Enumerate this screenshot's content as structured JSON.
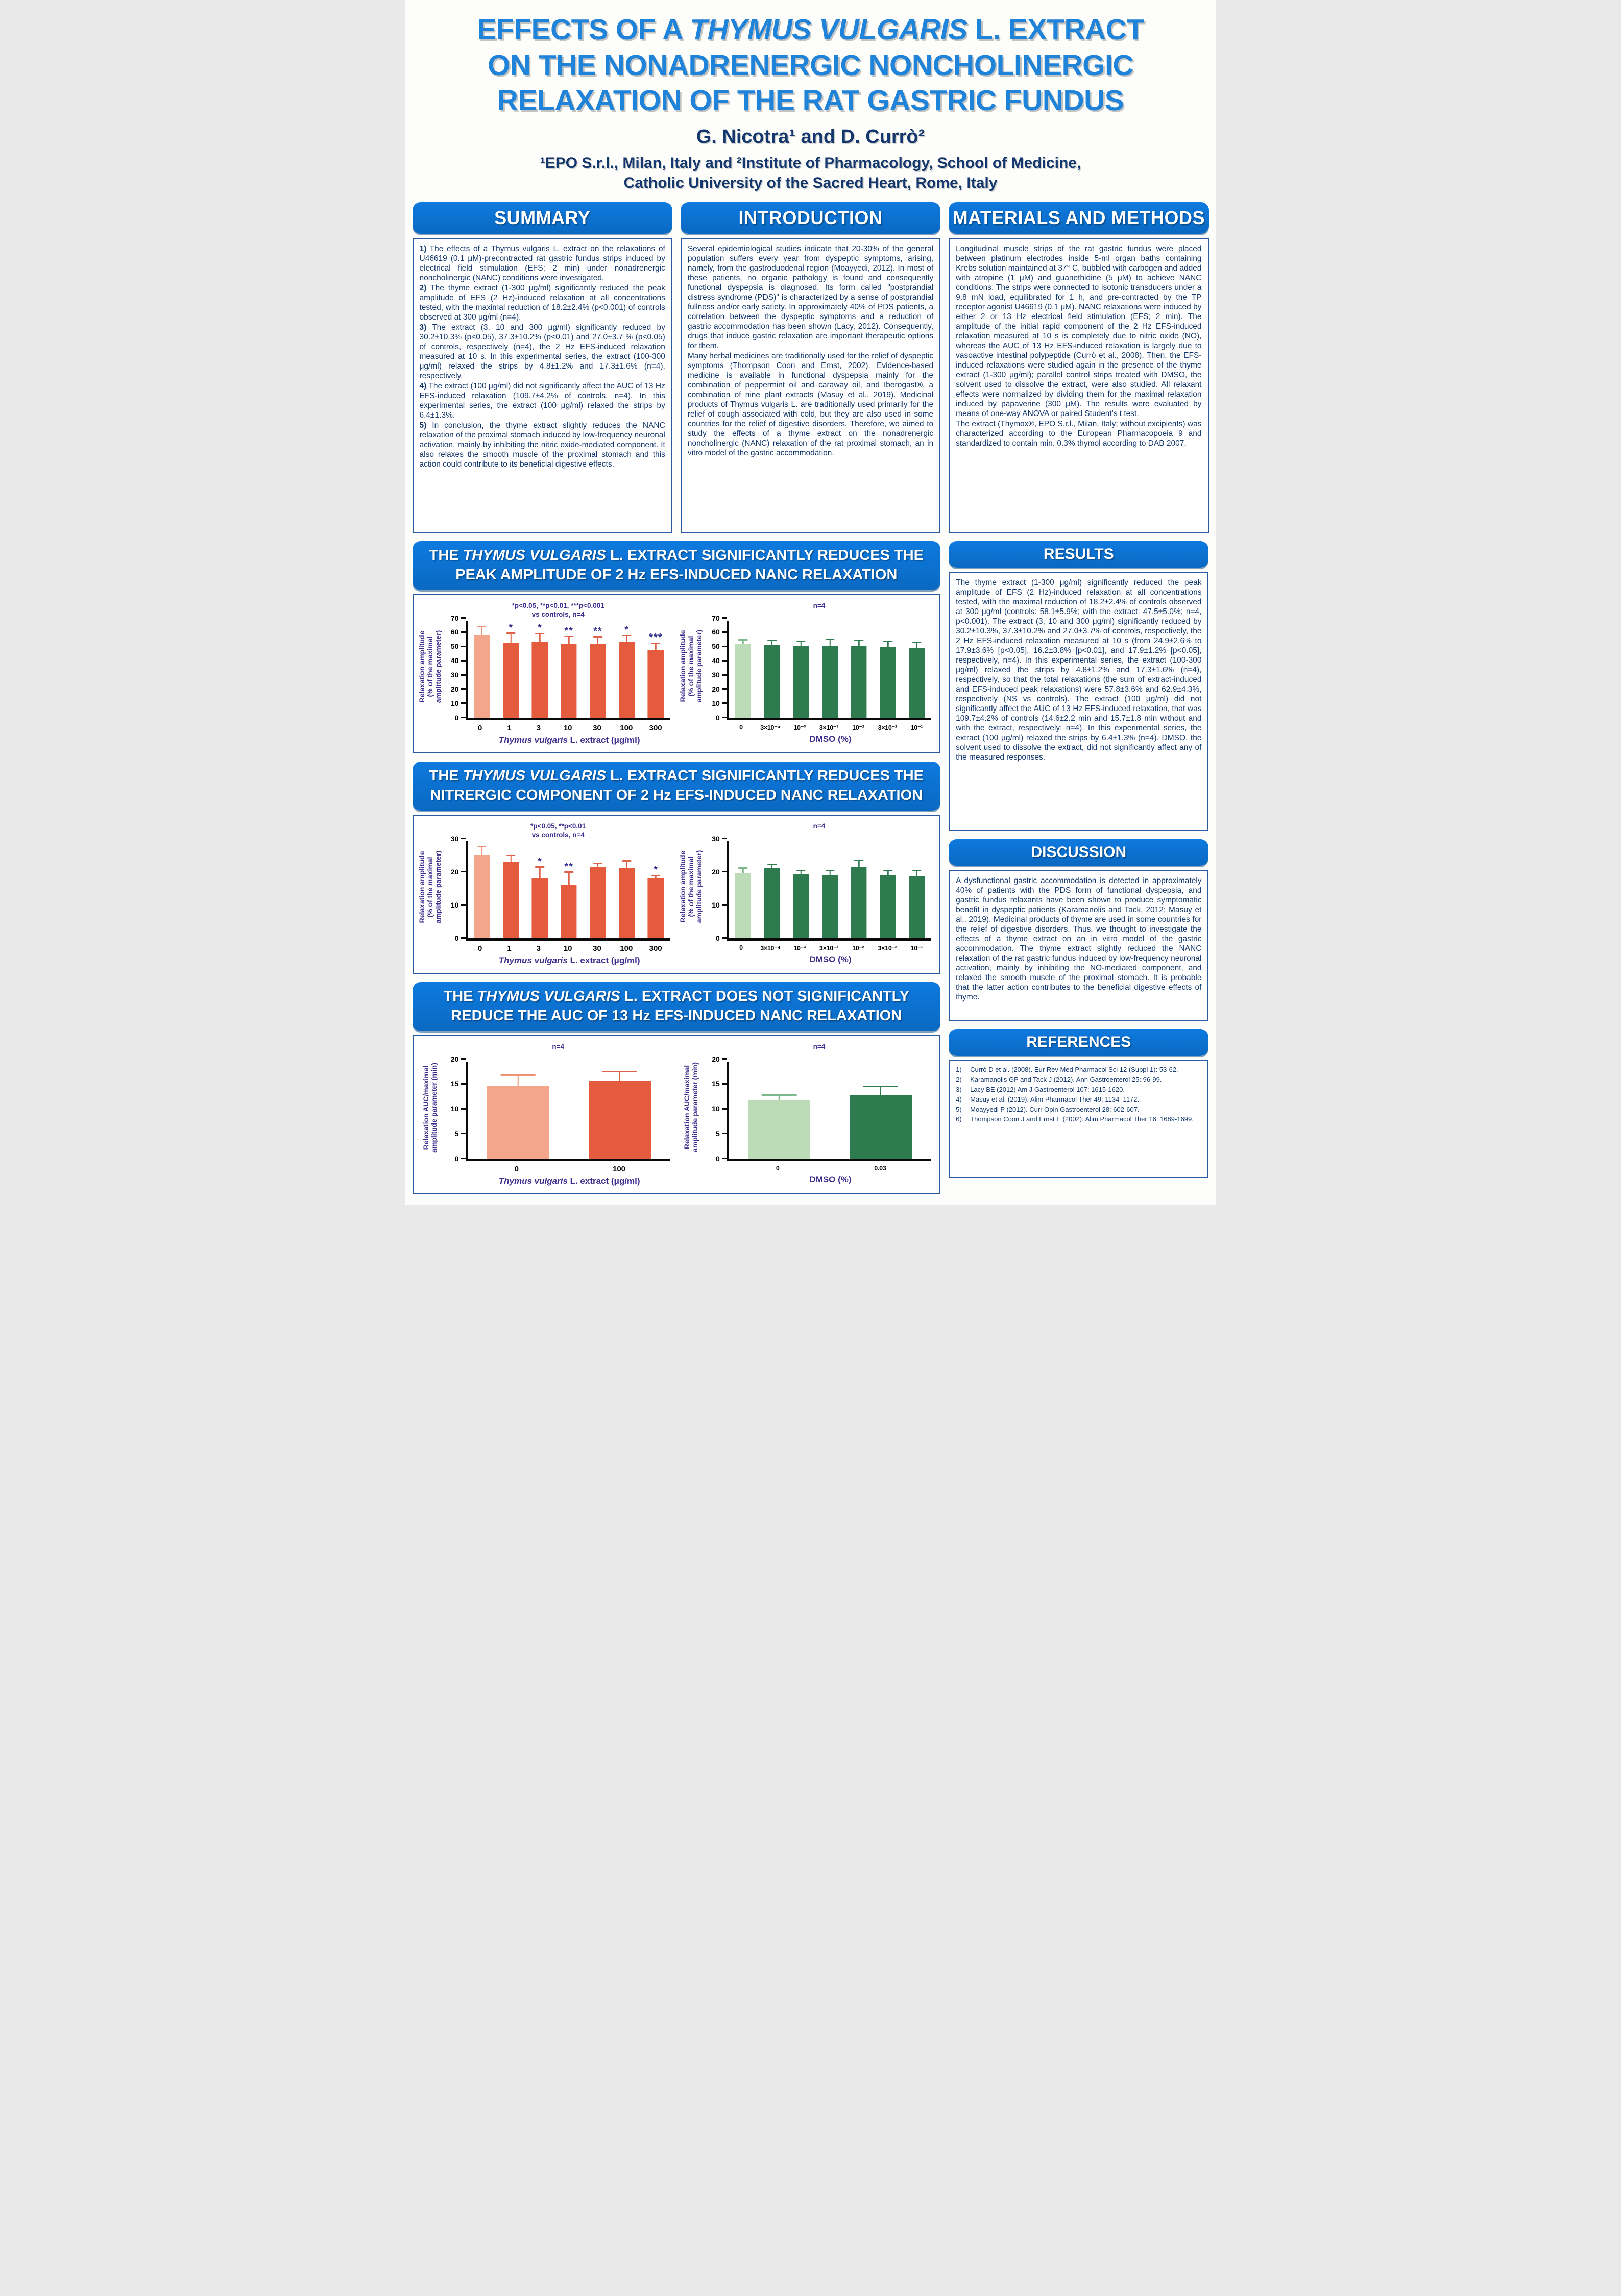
{
  "poster": {
    "title_lines": [
      [
        {
          "t": "EFFECTS OF A ",
          "i": false
        },
        {
          "t": "THYMUS VULGARIS",
          "i": true
        },
        {
          "t": " L. EXTRACT",
          "i": false
        }
      ],
      [
        {
          "t": "ON THE NONADRENERGIC NONCHOLINERGIC",
          "i": false
        }
      ],
      [
        {
          "t": "RELAXATION OF THE RAT GASTRIC FUNDUS",
          "i": false
        }
      ]
    ],
    "authors": "G. Nicotra¹ and D. Currò²",
    "affiliation_lines": [
      "¹EPO S.r.l., Milan, Italy and ²Institute of Pharmacology, School of Medicine,",
      "Catholic University of the Sacred Heart, Rome, Italy"
    ]
  },
  "sections": {
    "summary": {
      "title": "SUMMARY",
      "paragraphs": [
        {
          "num": "1)",
          "text": "The effects of a Thymus vulgaris L. extract on the relaxations of U46619 (0.1 μM)-precontracted rat gastric fundus strips induced by electrical field stimulation (EFS; 2 min) under nonadrenergic noncholinergic (NANC) conditions were investigated."
        },
        {
          "num": "2)",
          "text": "The thyme extract (1-300 μg/ml) significantly reduced the peak amplitude of EFS (2 Hz)-induced relaxation at all concentrations tested, with the maximal reduction of 18.2±2.4% (p<0.001) of controls observed at 300 μg/ml (n=4)."
        },
        {
          "num": "3)",
          "text": "The extract (3, 10 and 300 μg/ml) significantly reduced by 30.2±10.3% (p<0.05), 37.3±10.2% (p<0.01) and 27.0±3.7 % (p<0.05) of controls, respectively (n=4), the 2 Hz EFS-induced relaxation measured at 10 s. In this experimental series, the extract (100-300 μg/ml) relaxed the strips by 4.8±1.2% and 17.3±1.6% (n=4), respectively."
        },
        {
          "num": "4)",
          "text": "The extract (100 μg/ml) did not significantly affect the AUC of 13 Hz EFS-induced relaxation (109.7±4.2% of controls, n=4). In this experimental series, the extract (100 μg/ml) relaxed the strips by 6.4±1.3%."
        },
        {
          "num": "5)",
          "text": "In conclusion, the thyme extract slightly reduces the NANC relaxation of the proximal stomach induced by low-frequency neuronal activation, mainly by inhibiting the nitric oxide-mediated component. It also relaxes the smooth muscle of the proximal stomach and this action could contribute to its beneficial digestive effects."
        }
      ]
    },
    "introduction": {
      "title": "INTRODUCTION",
      "paragraphs": [
        "Several epidemiological studies indicate that 20-30% of the general population suffers every year from dyspeptic symptoms, arising, namely, from the gastroduodenal region (Moayyedi, 2012). In most of these patients, no organic pathology is found and consequently functional dyspepsia is diagnosed. Its form called \"postprandial distress syndrome (PDS)\" is characterized by a sense of postprandial fullness and/or early satiety. In approximately 40% of PDS patients, a correlation between the dyspeptic symptoms and a reduction of gastric accommodation has been shown (Lacy, 2012). Consequently, drugs that induce gastric relaxation are important therapeutic options for them.",
        "Many herbal medicines are traditionally used for the relief of dyspeptic symptoms (Thompson Coon and Ernst, 2002). Evidence-based medicine is available in functional dyspepsia mainly for the combination of peppermint oil and caraway oil, and Iberogast®, a combination of nine plant extracts (Masuy et al., 2019). Medicinal products of Thymus vulgaris L. are traditionally used primarily for the relief of cough associated with cold, but they are also used in some countries for the relief of digestive disorders. Therefore, we aimed to study the effects of a thyme extract on the nonadrenergic noncholinergic (NANC) relaxation of the rat proximal stomach, an in vitro model of the gastric accommodation."
      ]
    },
    "methods": {
      "title": "MATERIALS AND METHODS",
      "paragraphs": [
        "Longitudinal muscle strips of the rat gastric fundus were placed between platinum electrodes inside 5-ml organ baths containing Krebs solution maintained at 37° C, bubbled with carbogen and added with atropine (1 μM) and guanethidine (5 μM) to achieve NANC conditions. The strips were connected to isotonic transducers under a 9.8 mN load, equilibrated for 1 h, and pre-contracted by the TP receptor agonist U46619 (0.1 μM). NANC relaxations were induced by either 2 or 13 Hz electrical field stimulation (EFS; 2 min). The amplitude of the initial rapid component of the 2 Hz EFS-induced relaxation measured at 10 s is completely due to nitric oxide (NO), whereas the AUC of 13 Hz EFS-induced relaxation is largely due to vasoactive intestinal polypeptide (Currò et al., 2008). Then, the EFS-induced relaxations were studied again in the presence of the thyme extract (1-300 μg/ml); parallel control strips treated with DMSO, the solvent used to dissolve the extract, were also studied. All relaxant effects were normalized by dividing them for the maximal relaxation induced by papaverine (300 μM). The results were evaluated by means of one-way ANOVA or paired Student's t test.",
        "The extract (Thymox®, EPO S.r.l., Milan, Italy; without excipients) was characterized according to the European Pharmacopoeia 9 and standardized to contain min. 0.3% thymol according to DAB 2007."
      ]
    },
    "results": {
      "title": "RESULTS",
      "paragraphs": [
        "The thyme extract (1-300 μg/ml) significantly reduced the peak amplitude of EFS (2 Hz)-induced relaxation at all concentrations tested, with the maximal reduction of 18.2±2.4% of controls observed at 300 μg/ml (controls: 58.1±5.9%; with the extract: 47.5±5.0%; n=4, p<0.001). The extract (3, 10 and 300 μg/ml) significantly reduced by 30.2±10.3%, 37.3±10.2% and 27.0±3.7% of controls, respectively, the 2 Hz EFS-induced relaxation measured at 10 s (from 24.9±2.6% to 17.9±3.6% [p<0.05], 16.2±3.8% [p<0.01], and 17.9±1.2% [p<0.05], respectively, n=4). In this experimental series, the extract (100-300 μg/ml) relaxed the strips by 4.8±1.2% and 17.3±1.6% (n=4), respectively, so that the total relaxations (the sum of extract-induced and EFS-induced peak relaxations) were 57.8±3.6% and 62.9±4.3%, respectively (NS vs controls). The extract (100 μg/ml) did not significantly affect the AUC of 13 Hz EFS-induced relaxation, that was 109.7±4.2% of controls (14.6±2.2 min and 15.7±1.8 min without and with the extract, respectively; n=4). In this experimental series, the extract (100 μg/ml) relaxed the strips by 6.4±1.3% (n=4). DMSO, the solvent used to dissolve the extract, did not significantly affect any of the measured responses."
      ]
    },
    "discussion": {
      "title": "DISCUSSION",
      "paragraphs": [
        "A dysfunctional gastric accommodation is detected in approximately 40% of patients with the PDS form of functional dyspepsia, and gastric fundus relaxants have been shown to produce symptomatic benefit in dyspeptic patients (Karamanolis and Tack, 2012; Masuy et al., 2019). Medicinal products of thyme are used in some countries for the relief of digestive disorders. Thus, we thought to investigate the effects of a thyme extract on an in vitro model of the gastric accommodation. The thyme extract slightly reduced the NANC relaxation of the rat gastric fundus induced by low-frequency neuronal activation, mainly by inhibiting the NO-mediated component, and relaxed the smooth muscle of the proximal stomach. It is probable that the latter action contributes to the beneficial digestive effects of thyme."
      ]
    },
    "references": {
      "title": "REFERENCES",
      "items": [
        {
          "n": "1)",
          "text": "Currò D et al. (2008). Eur Rev Med Pharmacol Sci 12 (Suppl 1): 53-62."
        },
        {
          "n": "2)",
          "text": "Karamanolis GP and Tack J (2012). Ann Gastroenterol 25: 96-99."
        },
        {
          "n": "3)",
          "text": "Lacy BE (2012) Am J Gastroenterol 107: 1615-1620."
        },
        {
          "n": "4)",
          "text": "Masuy et al. (2019). Alim Pharmacol Ther 49: 1134–1172."
        },
        {
          "n": "5)",
          "text": "Moayyedi P (2012). Curr Opin Gastroenterol 28: 602-607."
        },
        {
          "n": "6)",
          "text": "Thompson Coon J and Ernst E (2002). Alim Pharmacol Ther 16: 1689-1699."
        }
      ]
    }
  },
  "panels": [
    {
      "title_parts": [
        {
          "t": "THE ",
          "i": false
        },
        {
          "t": "THYMUS VULGARIS",
          "i": true
        },
        {
          "t": " L. EXTRACT SIGNIFICANTLY REDUCES THE PEAK AMPLITUDE OF 2 Hz EFS-INDUCED NANC RELAXATION",
          "i": false
        }
      ]
    },
    {
      "title_parts": [
        {
          "t": "THE ",
          "i": false
        },
        {
          "t": "THYMUS VULGARIS",
          "i": true
        },
        {
          "t": " L. EXTRACT SIGNIFICANTLY REDUCES THE NITRERGIC COMPONENT OF 2 Hz EFS-INDUCED NANC RELAXATION",
          "i": false
        }
      ]
    },
    {
      "title_parts": [
        {
          "t": "THE ",
          "i": false
        },
        {
          "t": "THYMUS VULGARIS",
          "i": true
        },
        {
          "t": " L. EXTRACT DOES NOT SIGNIFICANTLY REDUCE THE AUC OF 13 Hz EFS-INDUCED NANC RELAXATION",
          "i": false
        }
      ]
    }
  ],
  "chart_data": [
    {
      "type": "bar",
      "categories": [
        "0",
        "1",
        "3",
        "10",
        "30",
        "100",
        "300"
      ],
      "values": [
        58,
        52.5,
        53,
        51.5,
        52,
        53.5,
        47.5
      ],
      "errors": [
        6,
        7,
        6.3,
        5.8,
        5,
        4.5,
        5
      ],
      "significance": [
        "",
        "*",
        "*",
        "**",
        "**",
        "*",
        "***"
      ],
      "annotation": [
        "*p<0.05, **p<0.01, ***p<0.001",
        "vs controls, n=4"
      ],
      "ylabel_lines": [
        "Relaxation amplitude",
        "(% of the maximal",
        "amplitude parameter)"
      ],
      "xlabel_parts": [
        {
          "t": "Thymus vulgaris",
          "i": true
        },
        {
          "t": " L. extract (μg/ml)",
          "i": false
        }
      ],
      "ylim": [
        0,
        70
      ],
      "ystep": 10,
      "colors": {
        "control": "#F4A68C",
        "bar": "#E55B3E",
        "control_err": "#EF9377",
        "err": "#E0614A"
      }
    },
    {
      "type": "bar",
      "categories": [
        "0",
        "3×10⁻⁴",
        "10⁻³",
        "3×10⁻³",
        "10⁻²",
        "3×10⁻²",
        "10⁻¹"
      ],
      "values": [
        51.5,
        51,
        50.5,
        50.3,
        50.5,
        49.5,
        49
      ],
      "errors": [
        3.3,
        3.6,
        3.5,
        4.7,
        4,
        4.4,
        4
      ],
      "significance": [
        "",
        "",
        "",
        "",
        "",
        "",
        ""
      ],
      "annotation": [
        "n=4"
      ],
      "ylabel_lines": [
        "Relaxation amplitude",
        "(% of the maximal",
        "amplitude parameter)"
      ],
      "xlabel_parts": [
        {
          "t": "DMSO (%)",
          "i": false
        }
      ],
      "ylim": [
        0,
        70
      ],
      "ystep": 10,
      "colors": {
        "control": "#BCDCB8",
        "bar": "#2E7B4F",
        "control_err": "#7FB98B",
        "err": "#2E7B4F"
      }
    },
    {
      "type": "bar",
      "categories": [
        "0",
        "1",
        "3",
        "10",
        "30",
        "100",
        "300"
      ],
      "values": [
        25,
        23,
        18,
        16,
        21.5,
        21,
        18
      ],
      "errors": [
        2.6,
        2,
        3.5,
        4,
        1,
        2.4,
        1
      ],
      "significance": [
        "",
        "",
        "*",
        "**",
        "",
        "",
        "*"
      ],
      "annotation": [
        "*p<0.05, **p<0.01",
        "vs controls, n=4"
      ],
      "ylabel_lines": [
        "Relaxation amplitude",
        "(% of the maximal",
        "amplitude parameter)"
      ],
      "xlabel_parts": [
        {
          "t": "Thymus vulgaris",
          "i": true
        },
        {
          "t": " L. extract (μg/ml)",
          "i": false
        }
      ],
      "ylim": [
        0,
        30
      ],
      "ystep": 10,
      "colors": {
        "control": "#F4A68C",
        "bar": "#E55B3E",
        "control_err": "#EF9377",
        "err": "#E0614A"
      }
    },
    {
      "type": "bar",
      "categories": [
        "0",
        "3×10⁻⁴",
        "10⁻³",
        "3×10⁻³",
        "10⁻²",
        "3×10⁻²",
        "10⁻¹"
      ],
      "values": [
        19.5,
        21,
        19.2,
        18.8,
        21.5,
        18.9,
        18.7
      ],
      "errors": [
        1.7,
        1.3,
        1.2,
        1.6,
        2,
        1.5,
        1.8
      ],
      "significance": [
        "",
        "",
        "",
        "",
        "",
        "",
        ""
      ],
      "annotation": [
        "n=4"
      ],
      "ylabel_lines": [
        "Relaxation amplitude",
        "(% of the maximal",
        "amplitude parameter)"
      ],
      "xlabel_parts": [
        {
          "t": "DMSO (%)",
          "i": false
        }
      ],
      "ylim": [
        0,
        30
      ],
      "ystep": 10,
      "colors": {
        "control": "#BCDCB8",
        "bar": "#2E7B4F",
        "control_err": "#7FB98B",
        "err": "#2E7B4F"
      }
    },
    {
      "type": "bar",
      "categories": [
        "0",
        "100"
      ],
      "values": [
        14.6,
        15.7
      ],
      "errors": [
        2.2,
        1.8
      ],
      "significance": [
        "",
        ""
      ],
      "annotation": [
        "n=4"
      ],
      "ylabel_lines": [
        "Relaxation AUC/maximal",
        "amplitude parameter (min)"
      ],
      "xlabel_parts": [
        {
          "t": "Thymus vulgaris",
          "i": true
        },
        {
          "t": " L. extract (μg/ml)",
          "i": false
        }
      ],
      "ylim": [
        0,
        20
      ],
      "ystep": 5,
      "colors": {
        "control": "#F4A68C",
        "bar": "#E55B3E",
        "control_err": "#EF9377",
        "err": "#E0614A"
      }
    },
    {
      "type": "bar",
      "categories": [
        "0",
        "0.03"
      ],
      "values": [
        11.8,
        12.7
      ],
      "errors": [
        1.0,
        1.8
      ],
      "significance": [
        "",
        ""
      ],
      "annotation": [
        "n=4"
      ],
      "ylabel_lines": [
        "Relaxation AUC/maximal",
        "amplitude parameter (min)"
      ],
      "xlabel_parts": [
        {
          "t": "DMSO (%)",
          "i": false
        }
      ],
      "ylim": [
        0,
        20
      ],
      "ystep": 5,
      "colors": {
        "control": "#BCDCB8",
        "bar": "#2E7B4F",
        "control_err": "#7FB98B",
        "err": "#2E7B4F"
      }
    }
  ]
}
